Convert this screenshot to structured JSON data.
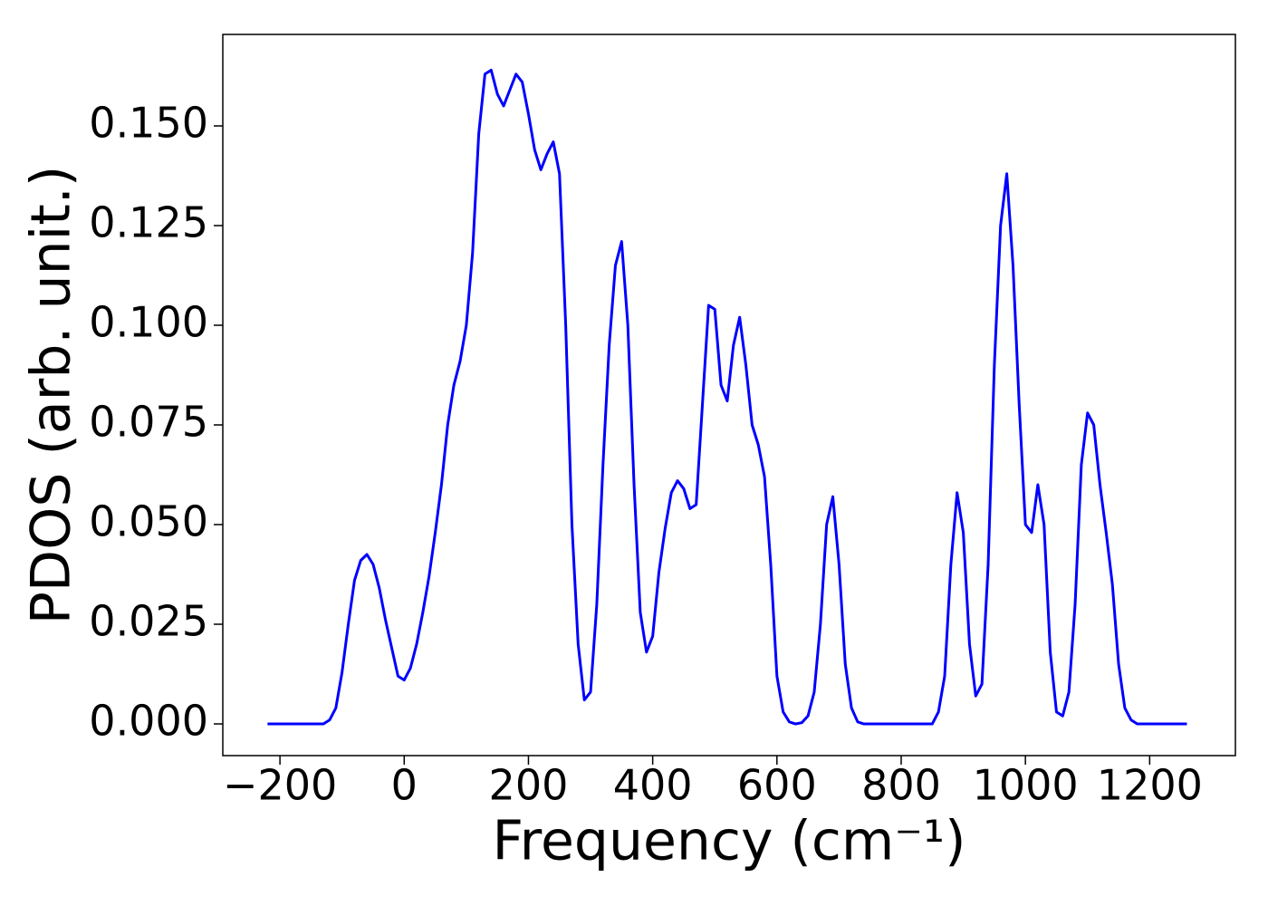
{
  "chart_data": {
    "type": "line",
    "xlabel": "Frequency (cm⁻¹)",
    "ylabel": "PDOS (arb. unit.)",
    "x": [
      -220,
      -210,
      -200,
      -190,
      -180,
      -170,
      -160,
      -150,
      -140,
      -130,
      -120,
      -110,
      -100,
      -90,
      -80,
      -70,
      -60,
      -50,
      -40,
      -30,
      -20,
      -10,
      0,
      10,
      20,
      30,
      40,
      50,
      60,
      70,
      80,
      90,
      100,
      110,
      120,
      130,
      140,
      150,
      160,
      170,
      180,
      190,
      200,
      210,
      220,
      230,
      240,
      250,
      260,
      270,
      280,
      290,
      300,
      310,
      320,
      330,
      340,
      350,
      360,
      370,
      380,
      390,
      400,
      410,
      420,
      430,
      440,
      450,
      460,
      470,
      480,
      490,
      500,
      510,
      520,
      530,
      540,
      550,
      560,
      570,
      580,
      590,
      600,
      610,
      620,
      630,
      640,
      650,
      660,
      670,
      680,
      690,
      700,
      710,
      720,
      730,
      740,
      750,
      760,
      770,
      780,
      790,
      800,
      810,
      820,
      830,
      840,
      850,
      860,
      870,
      880,
      890,
      900,
      910,
      920,
      930,
      940,
      950,
      960,
      970,
      980,
      990,
      1000,
      1010,
      1020,
      1030,
      1040,
      1050,
      1060,
      1070,
      1080,
      1090,
      1100,
      1110,
      1120,
      1130,
      1140,
      1150,
      1160,
      1170,
      1180,
      1190,
      1200,
      1210,
      1220,
      1230,
      1240,
      1250,
      1260
    ],
    "series": [
      {
        "color": "#0000ff",
        "values": [
          0,
          0,
          0,
          0,
          0,
          0,
          0,
          0,
          0,
          0,
          0.001,
          0.004,
          0.013,
          0.025,
          0.036,
          0.041,
          0.0425,
          0.04,
          0.034,
          0.026,
          0.019,
          0.012,
          0.011,
          0.014,
          0.02,
          0.028,
          0.037,
          0.048,
          0.06,
          0.075,
          0.085,
          0.091,
          0.1,
          0.118,
          0.148,
          0.163,
          0.164,
          0.158,
          0.155,
          0.159,
          0.163,
          0.161,
          0.153,
          0.144,
          0.139,
          0.143,
          0.146,
          0.138,
          0.1,
          0.05,
          0.02,
          0.006,
          0.008,
          0.03,
          0.065,
          0.095,
          0.115,
          0.121,
          0.1,
          0.06,
          0.028,
          0.018,
          0.022,
          0.038,
          0.049,
          0.058,
          0.061,
          0.059,
          0.054,
          0.055,
          0.08,
          0.105,
          0.104,
          0.085,
          0.081,
          0.095,
          0.102,
          0.09,
          0.075,
          0.07,
          0.062,
          0.04,
          0.012,
          0.003,
          0.0005,
          0,
          0.0003,
          0.002,
          0.008,
          0.025,
          0.05,
          0.057,
          0.04,
          0.015,
          0.004,
          0.0005,
          0,
          0,
          0,
          0,
          0,
          0,
          0,
          0,
          0,
          0,
          0,
          0,
          0.003,
          0.012,
          0.04,
          0.058,
          0.048,
          0.02,
          0.007,
          0.01,
          0.04,
          0.09,
          0.125,
          0.138,
          0.115,
          0.08,
          0.05,
          0.048,
          0.06,
          0.05,
          0.018,
          0.003,
          0.002,
          0.008,
          0.03,
          0.065,
          0.078,
          0.075,
          0.06,
          0.048,
          0.035,
          0.015,
          0.004,
          0.001,
          0,
          0,
          0,
          0,
          0,
          0,
          0,
          0,
          0
        ]
      }
    ],
    "xlim": [
      -292,
      1338
    ],
    "ylim": [
      -0.00795,
      0.17295
    ],
    "xticks": [
      {
        "value": -200,
        "label": "−200"
      },
      0,
      200,
      400,
      600,
      800,
      1000,
      1200
    ],
    "yticks": [
      {
        "value": 0,
        "label": "0.000"
      },
      {
        "value": 0.025,
        "label": "0.025"
      },
      {
        "value": 0.05,
        "label": "0.050"
      },
      {
        "value": 0.075,
        "label": "0.075"
      },
      {
        "value": 0.1,
        "label": "0.100"
      },
      {
        "value": 0.125,
        "label": "0.125"
      },
      {
        "value": 0.15,
        "label": "0.150"
      }
    ],
    "grid": false
  }
}
